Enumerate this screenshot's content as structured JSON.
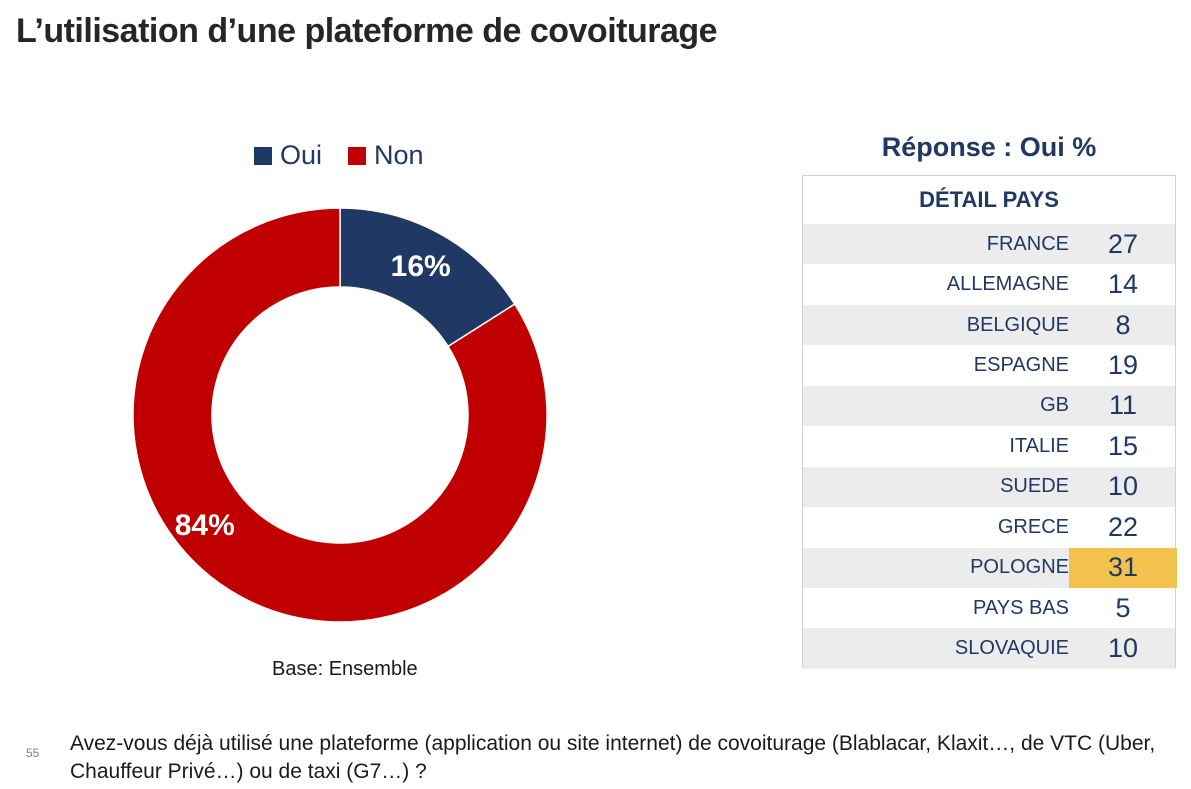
{
  "title": "L’utilisation d’une plateforme de covoiturage",
  "chart_data": {
    "type": "pie",
    "categories": [
      "Oui",
      "Non"
    ],
    "values": [
      16,
      84
    ],
    "value_labels": [
      "16%",
      "84%"
    ],
    "colors": [
      "#1f3864",
      "#c00000"
    ],
    "legend_position": "top",
    "donut": true
  },
  "base_note": "Base: Ensemble",
  "country_table": {
    "title": "Réponse : Oui %",
    "header": "DÉTAIL PAYS",
    "highlight_color": "#f2c14e",
    "rows": [
      {
        "country": "FRANCE",
        "value": "27"
      },
      {
        "country": "ALLEMAGNE",
        "value": "14"
      },
      {
        "country": "BELGIQUE",
        "value": "8"
      },
      {
        "country": "ESPAGNE",
        "value": "19"
      },
      {
        "country": "GB",
        "value": "11"
      },
      {
        "country": "ITALIE",
        "value": "15"
      },
      {
        "country": "SUEDE",
        "value": "10"
      },
      {
        "country": "GRECE",
        "value": "22"
      },
      {
        "country": "POLOGNE",
        "value": "31",
        "highlight": true
      },
      {
        "country": "PAYS BAS",
        "value": "5"
      },
      {
        "country": "SLOVAQUIE",
        "value": "10"
      }
    ]
  },
  "page_number": "55",
  "question": "Avez-vous déjà utilisé une plateforme (application ou site internet) de covoiturage (Blablacar, Klaxit…, de VTC (Uber, Chauffeur Privé…) ou de taxi (G7…) ?"
}
